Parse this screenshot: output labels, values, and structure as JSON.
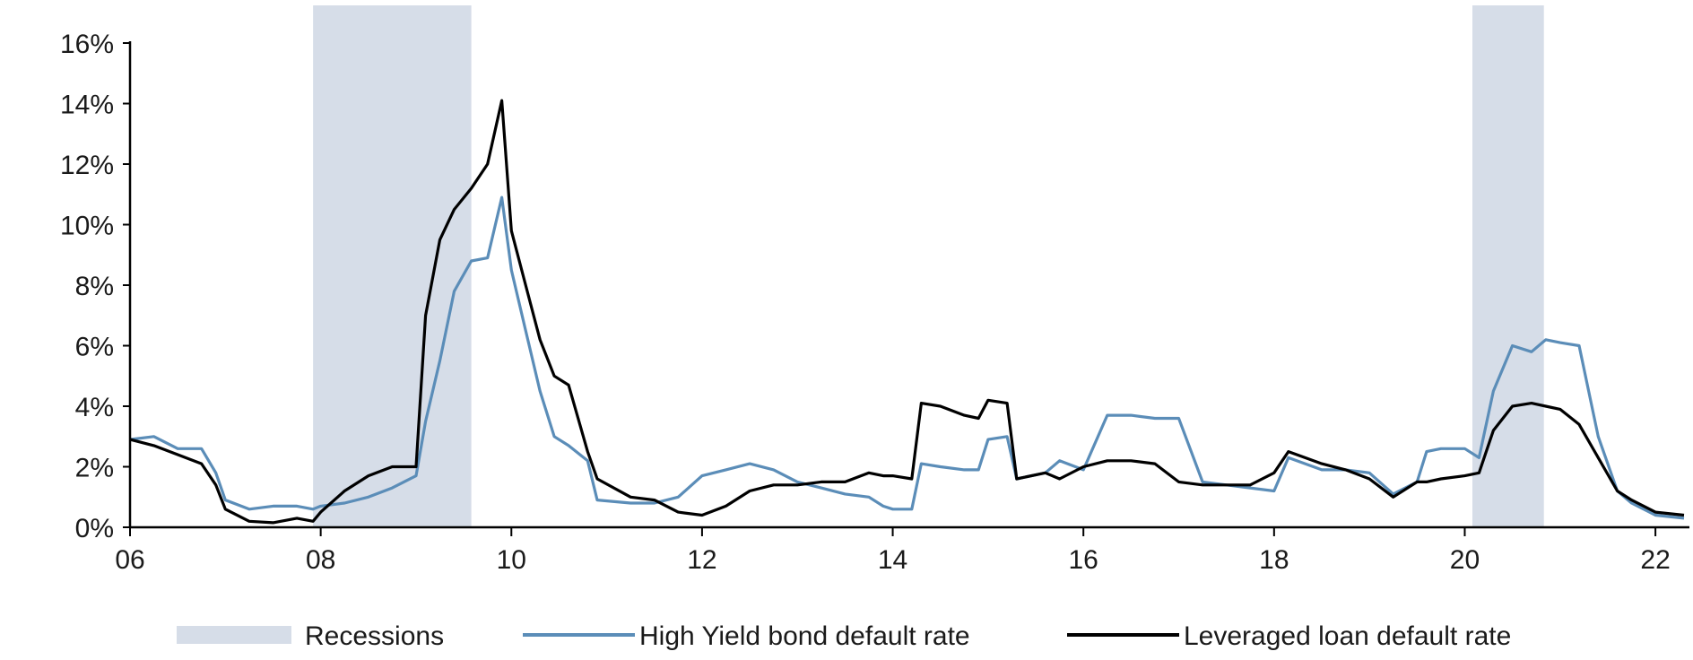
{
  "chart_data": {
    "type": "line",
    "xaxis": {
      "range": [
        2006,
        2022.3
      ],
      "ticks": [
        2006,
        2008,
        2010,
        2012,
        2014,
        2016,
        2018,
        2020,
        2022
      ],
      "tick_labels": [
        "06",
        "08",
        "10",
        "12",
        "14",
        "16",
        "18",
        "20",
        "22"
      ]
    },
    "yaxis": {
      "range": [
        0,
        16
      ],
      "ticks": [
        0,
        2,
        4,
        6,
        8,
        10,
        12,
        14,
        16
      ],
      "tick_labels": [
        "0%",
        "2%",
        "4%",
        "6%",
        "8%",
        "10%",
        "12%",
        "14%",
        "16%"
      ]
    },
    "grid": false,
    "legend_position": "bottom",
    "recessions": {
      "name": "Recessions",
      "color": "#d6dde8",
      "periods": [
        [
          2007.92,
          2009.58
        ],
        [
          2020.08,
          2020.83
        ]
      ]
    },
    "series": [
      {
        "name": "High Yield bond default rate",
        "color": "#5b8db8",
        "points": [
          [
            2006.0,
            2.9
          ],
          [
            2006.25,
            3.0
          ],
          [
            2006.5,
            2.6
          ],
          [
            2006.75,
            2.6
          ],
          [
            2006.9,
            1.8
          ],
          [
            2007.0,
            0.9
          ],
          [
            2007.25,
            0.6
          ],
          [
            2007.5,
            0.7
          ],
          [
            2007.75,
            0.7
          ],
          [
            2007.92,
            0.6
          ],
          [
            2008.0,
            0.7
          ],
          [
            2008.25,
            0.8
          ],
          [
            2008.5,
            1.0
          ],
          [
            2008.75,
            1.3
          ],
          [
            2009.0,
            1.7
          ],
          [
            2009.1,
            3.5
          ],
          [
            2009.25,
            5.5
          ],
          [
            2009.4,
            7.8
          ],
          [
            2009.58,
            8.8
          ],
          [
            2009.75,
            8.9
          ],
          [
            2009.9,
            10.9
          ],
          [
            2010.0,
            8.5
          ],
          [
            2010.15,
            6.5
          ],
          [
            2010.3,
            4.5
          ],
          [
            2010.45,
            3.0
          ],
          [
            2010.6,
            2.7
          ],
          [
            2010.8,
            2.2
          ],
          [
            2010.9,
            0.9
          ],
          [
            2011.25,
            0.8
          ],
          [
            2011.5,
            0.8
          ],
          [
            2011.75,
            1.0
          ],
          [
            2012.0,
            1.7
          ],
          [
            2012.25,
            1.9
          ],
          [
            2012.5,
            2.1
          ],
          [
            2012.75,
            1.9
          ],
          [
            2013.0,
            1.5
          ],
          [
            2013.25,
            1.3
          ],
          [
            2013.5,
            1.1
          ],
          [
            2013.75,
            1.0
          ],
          [
            2013.9,
            0.7
          ],
          [
            2014.0,
            0.6
          ],
          [
            2014.2,
            0.6
          ],
          [
            2014.3,
            2.1
          ],
          [
            2014.5,
            2.0
          ],
          [
            2014.75,
            1.9
          ],
          [
            2014.9,
            1.9
          ],
          [
            2015.0,
            2.9
          ],
          [
            2015.2,
            3.0
          ],
          [
            2015.3,
            1.6
          ],
          [
            2015.6,
            1.8
          ],
          [
            2015.75,
            2.2
          ],
          [
            2016.0,
            1.9
          ],
          [
            2016.25,
            3.7
          ],
          [
            2016.5,
            3.7
          ],
          [
            2016.75,
            3.6
          ],
          [
            2017.0,
            3.6
          ],
          [
            2017.25,
            1.5
          ],
          [
            2017.5,
            1.4
          ],
          [
            2017.75,
            1.3
          ],
          [
            2018.0,
            1.2
          ],
          [
            2018.15,
            2.3
          ],
          [
            2018.5,
            1.9
          ],
          [
            2018.75,
            1.9
          ],
          [
            2019.0,
            1.8
          ],
          [
            2019.25,
            1.1
          ],
          [
            2019.5,
            1.5
          ],
          [
            2019.6,
            2.5
          ],
          [
            2019.75,
            2.6
          ],
          [
            2020.0,
            2.6
          ],
          [
            2020.15,
            2.3
          ],
          [
            2020.3,
            4.5
          ],
          [
            2020.5,
            6.0
          ],
          [
            2020.7,
            5.8
          ],
          [
            2020.85,
            6.2
          ],
          [
            2021.0,
            6.1
          ],
          [
            2021.2,
            6.0
          ],
          [
            2021.4,
            3.0
          ],
          [
            2021.6,
            1.2
          ],
          [
            2021.75,
            0.8
          ],
          [
            2022.0,
            0.4
          ],
          [
            2022.3,
            0.3
          ]
        ]
      },
      {
        "name": "Leveraged loan default rate",
        "color": "#000000",
        "points": [
          [
            2006.0,
            2.9
          ],
          [
            2006.25,
            2.7
          ],
          [
            2006.5,
            2.4
          ],
          [
            2006.75,
            2.1
          ],
          [
            2006.9,
            1.4
          ],
          [
            2007.0,
            0.6
          ],
          [
            2007.25,
            0.2
          ],
          [
            2007.5,
            0.15
          ],
          [
            2007.75,
            0.3
          ],
          [
            2007.92,
            0.2
          ],
          [
            2008.0,
            0.5
          ],
          [
            2008.25,
            1.2
          ],
          [
            2008.5,
            1.7
          ],
          [
            2008.75,
            2.0
          ],
          [
            2009.0,
            2.0
          ],
          [
            2009.1,
            7.0
          ],
          [
            2009.25,
            9.5
          ],
          [
            2009.4,
            10.5
          ],
          [
            2009.58,
            11.2
          ],
          [
            2009.75,
            12.0
          ],
          [
            2009.9,
            14.1
          ],
          [
            2010.0,
            9.8
          ],
          [
            2010.15,
            8.0
          ],
          [
            2010.3,
            6.2
          ],
          [
            2010.45,
            5.0
          ],
          [
            2010.6,
            4.7
          ],
          [
            2010.8,
            2.5
          ],
          [
            2010.9,
            1.6
          ],
          [
            2011.25,
            1.0
          ],
          [
            2011.5,
            0.9
          ],
          [
            2011.75,
            0.5
          ],
          [
            2012.0,
            0.4
          ],
          [
            2012.25,
            0.7
          ],
          [
            2012.5,
            1.2
          ],
          [
            2012.75,
            1.4
          ],
          [
            2013.0,
            1.4
          ],
          [
            2013.25,
            1.5
          ],
          [
            2013.5,
            1.5
          ],
          [
            2013.75,
            1.8
          ],
          [
            2013.9,
            1.7
          ],
          [
            2014.0,
            1.7
          ],
          [
            2014.2,
            1.6
          ],
          [
            2014.3,
            4.1
          ],
          [
            2014.5,
            4.0
          ],
          [
            2014.75,
            3.7
          ],
          [
            2014.9,
            3.6
          ],
          [
            2015.0,
            4.2
          ],
          [
            2015.2,
            4.1
          ],
          [
            2015.3,
            1.6
          ],
          [
            2015.6,
            1.8
          ],
          [
            2015.75,
            1.6
          ],
          [
            2016.0,
            2.0
          ],
          [
            2016.25,
            2.2
          ],
          [
            2016.5,
            2.2
          ],
          [
            2016.75,
            2.1
          ],
          [
            2017.0,
            1.5
          ],
          [
            2017.25,
            1.4
          ],
          [
            2017.5,
            1.4
          ],
          [
            2017.75,
            1.4
          ],
          [
            2018.0,
            1.8
          ],
          [
            2018.15,
            2.5
          ],
          [
            2018.5,
            2.1
          ],
          [
            2018.75,
            1.9
          ],
          [
            2019.0,
            1.6
          ],
          [
            2019.25,
            1.0
          ],
          [
            2019.5,
            1.5
          ],
          [
            2019.6,
            1.5
          ],
          [
            2019.75,
            1.6
          ],
          [
            2020.0,
            1.7
          ],
          [
            2020.15,
            1.8
          ],
          [
            2020.3,
            3.2
          ],
          [
            2020.5,
            4.0
          ],
          [
            2020.7,
            4.1
          ],
          [
            2020.85,
            4.0
          ],
          [
            2021.0,
            3.9
          ],
          [
            2021.2,
            3.4
          ],
          [
            2021.4,
            2.3
          ],
          [
            2021.6,
            1.2
          ],
          [
            2021.75,
            0.9
          ],
          [
            2022.0,
            0.5
          ],
          [
            2022.3,
            0.4
          ]
        ]
      }
    ]
  }
}
